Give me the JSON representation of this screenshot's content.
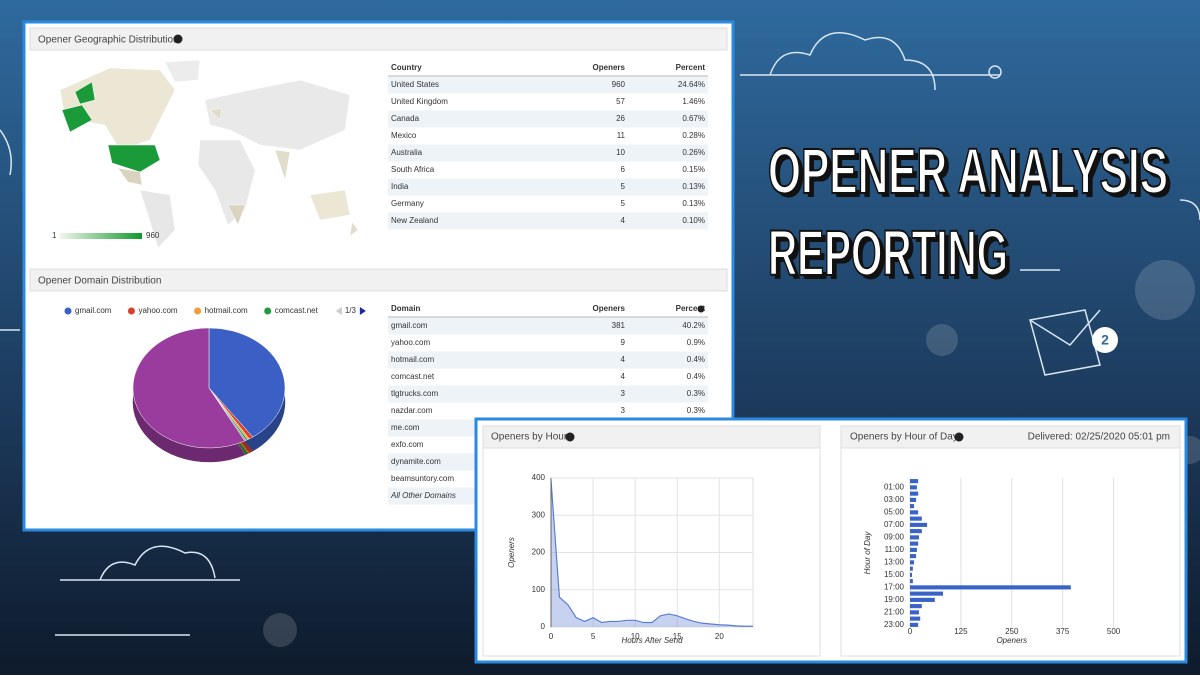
{
  "headline": {
    "line1": "OPENER ANALYSIS",
    "line2": "REPORTING"
  },
  "geo": {
    "title": "Opener Geographic Distribution",
    "legend_min": "1",
    "legend_max": "960",
    "columns": [
      "Country",
      "Openers",
      "Percent"
    ],
    "rows": [
      [
        "United States",
        "960",
        "24.64%"
      ],
      [
        "United Kingdom",
        "57",
        "1.46%"
      ],
      [
        "Canada",
        "26",
        "0.67%"
      ],
      [
        "Mexico",
        "11",
        "0.28%"
      ],
      [
        "Australia",
        "10",
        "0.26%"
      ],
      [
        "South Africa",
        "6",
        "0.15%"
      ],
      [
        "India",
        "5",
        "0.13%"
      ],
      [
        "Germany",
        "5",
        "0.13%"
      ],
      [
        "New Zealand",
        "4",
        "0.10%"
      ]
    ]
  },
  "domains": {
    "columns": [
      "Domain",
      "Openers",
      "Percent"
    ],
    "rows": [
      [
        "gmail.com",
        "381",
        "40.2%"
      ],
      [
        "yahoo.com",
        "9",
        "0.9%"
      ],
      [
        "hotmail.com",
        "4",
        "0.4%"
      ],
      [
        "comcast.net",
        "4",
        "0.4%"
      ],
      [
        "tlgtrucks.com",
        "3",
        "0.3%"
      ],
      [
        "nazdar.com",
        "3",
        "0.3%"
      ],
      [
        "me.com"
      ],
      [
        "exfo.com"
      ],
      [
        "dynamite.com"
      ],
      [
        "beamsuntory.com"
      ],
      [
        "All Other Domains"
      ]
    ]
  },
  "chart_data": [
    {
      "type": "pie",
      "title": "Opener Domain Distribution",
      "legend_page": "1/3",
      "categories": [
        "gmail.com",
        "yahoo.com",
        "hotmail.com",
        "comcast.net",
        null,
        null
      ],
      "values": [
        40.2,
        0.9,
        0.4,
        0.4,
        0.3,
        57.8
      ],
      "colors": [
        "#3b5fc4",
        "#d8412f",
        "#f39c3a",
        "#22993e",
        "#8a8a8a",
        "#9a3b9e"
      ]
    },
    {
      "type": "line",
      "title": "Openers by Hour",
      "x_label": "Hours After Send",
      "y_label": "Openers",
      "color": "#5b7fd0",
      "x": [
        0,
        1,
        2,
        3,
        4,
        5,
        6,
        7,
        8,
        9,
        10,
        11,
        12,
        13,
        14,
        15,
        16,
        17,
        18,
        19,
        20,
        21,
        22,
        23,
        24
      ],
      "values": [
        395,
        80,
        60,
        25,
        15,
        25,
        12,
        15,
        15,
        18,
        18,
        12,
        12,
        30,
        35,
        30,
        22,
        15,
        10,
        8,
        6,
        5,
        3,
        2,
        2
      ],
      "xlim": [
        0,
        24
      ],
      "ylim": [
        0,
        400
      ],
      "xticks": [
        0,
        5,
        10,
        15,
        20
      ],
      "yticks": [
        0,
        100,
        200,
        300,
        400
      ],
      "grid": true
    },
    {
      "type": "hbar",
      "title": "Openers by Hour of Day",
      "subtitle": "Delivered: 02/25/2020 05:01 pm",
      "x_label": "Openers",
      "y_label": "Hour of Day",
      "color": "#3a63c8",
      "categories": [
        null,
        "01:00",
        null,
        "03:00",
        null,
        "05:00",
        null,
        "07:00",
        null,
        "09:00",
        null,
        "11:00",
        null,
        "13:00",
        null,
        "15:00",
        null,
        "17:00",
        null,
        "19:00",
        null,
        "21:00",
        null,
        "23:00"
      ],
      "values": [
        20,
        17,
        20,
        15,
        10,
        20,
        29,
        42,
        29,
        22,
        20,
        17,
        15,
        10,
        7,
        5,
        7,
        395,
        81,
        61,
        29,
        22,
        25,
        20
      ],
      "xlim": [
        0,
        560
      ],
      "xticks": [
        0,
        125,
        250,
        375,
        500
      ],
      "grid": true
    }
  ]
}
